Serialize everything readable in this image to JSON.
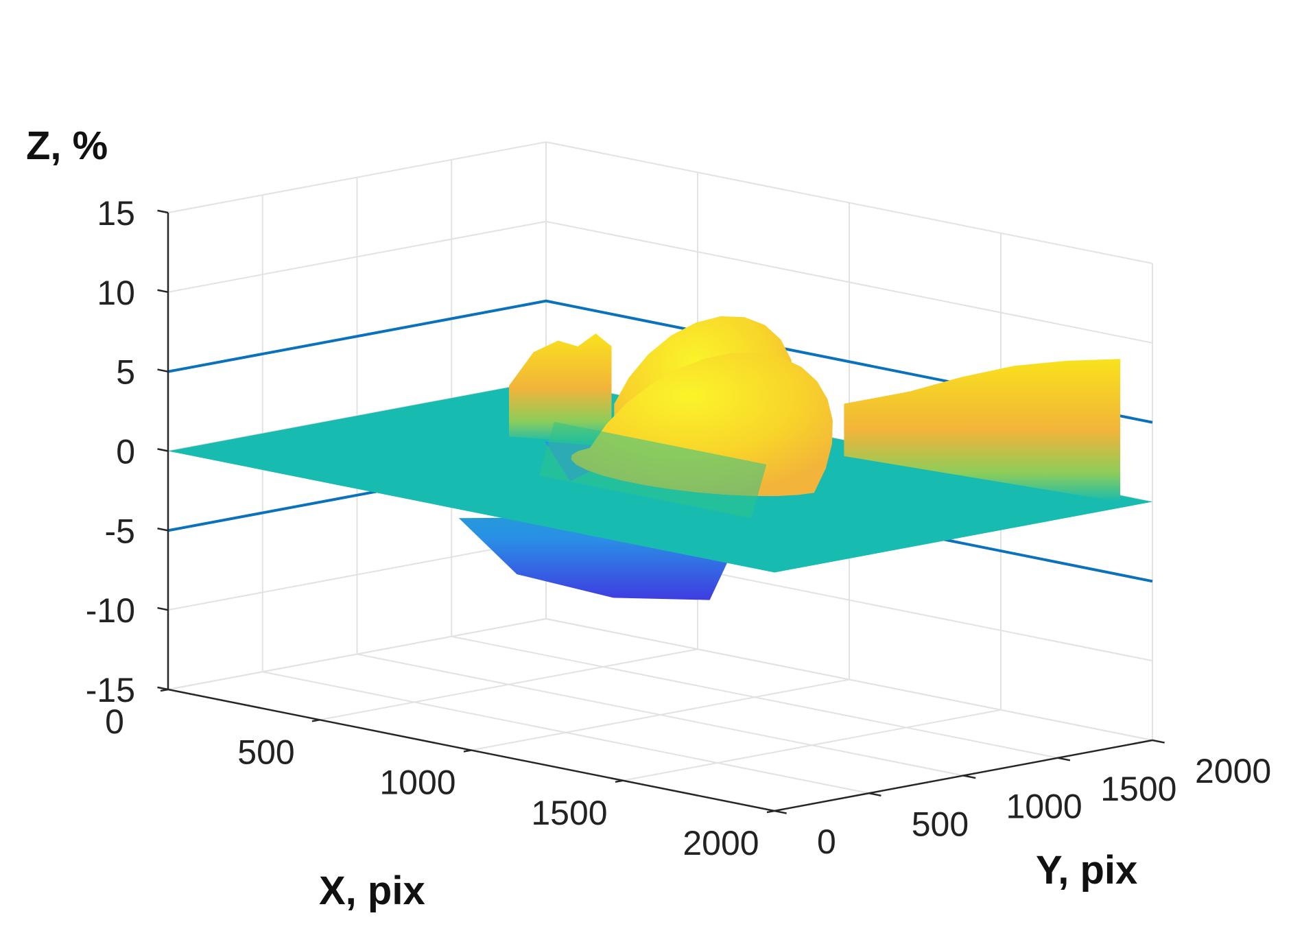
{
  "chart_data": {
    "type": "surface3d",
    "title": "",
    "xlabel": "X, pix",
    "ylabel": "Y, pix",
    "zlabel": "Z, %",
    "xlim": [
      0,
      2000
    ],
    "ylim": [
      0,
      2000
    ],
    "zlim": [
      -15,
      15
    ],
    "x_ticks": [
      "0",
      "500",
      "1000",
      "1500",
      "2000"
    ],
    "y_ticks": [
      "0",
      "500",
      "1000",
      "1500",
      "2000"
    ],
    "z_ticks": [
      "15",
      "10",
      "5",
      "0",
      "-5",
      "-10",
      "-15"
    ],
    "z_tick_values": [
      15,
      10,
      5,
      0,
      -5,
      -10,
      -15
    ],
    "grid": true,
    "reference_planes_z": [
      5,
      -5
    ],
    "base_plane_z": 0,
    "colormap": "parula",
    "colors": {
      "reference_lines": "#0a72bd",
      "base_plane": "#17bbb0",
      "peak": "#f9de10",
      "trough": "#3f3ce0"
    },
    "surface_features": [
      {
        "shape": "dome",
        "x": [
          800,
          1500
        ],
        "y": [
          600,
          1350
        ],
        "z_peak": 7
      },
      {
        "shape": "dome",
        "x": [
          650,
          1100
        ],
        "y": [
          1250,
          1700
        ],
        "z_peak": 8
      },
      {
        "shape": "ridge",
        "x": [
          200,
          500
        ],
        "y": [
          1000,
          1250
        ],
        "z_peak": 6
      },
      {
        "shape": "ridge",
        "x": [
          1000,
          2000
        ],
        "y": [
          1750,
          1950
        ],
        "z_peak": 9
      },
      {
        "shape": "depression",
        "x": [
          550,
          1450
        ],
        "y": [
          500,
          1200
        ],
        "z_min": -6
      }
    ]
  }
}
